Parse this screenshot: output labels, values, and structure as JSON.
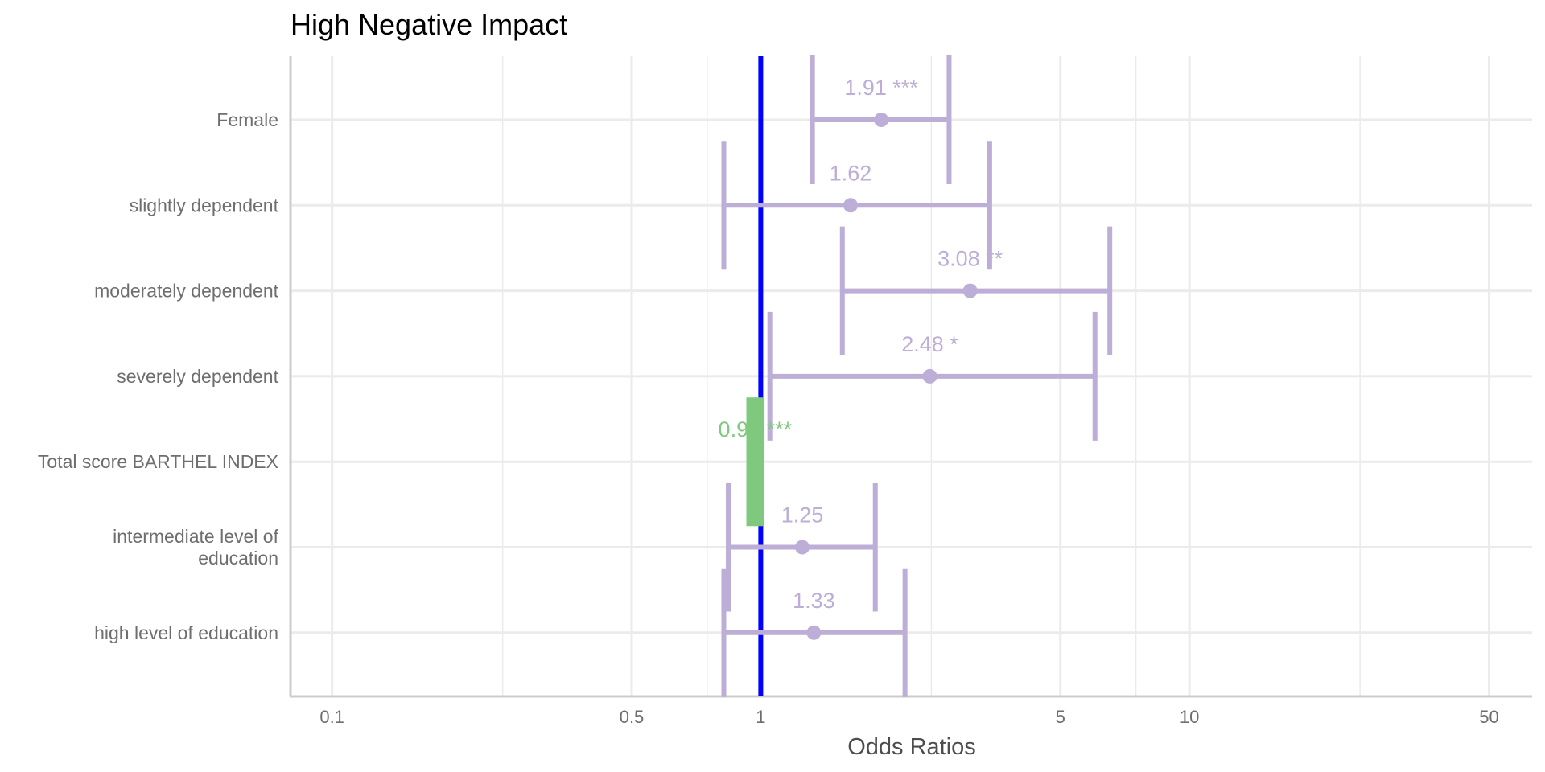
{
  "chart_data": {
    "type": "forest",
    "title": "High Negative Impact",
    "xlabel": "Odds Ratios",
    "x_scale": "log10",
    "xlim": [
      0.08,
      63
    ],
    "x_ticks": [
      0.1,
      0.5,
      1,
      5,
      10,
      50
    ],
    "x_tick_labels": [
      "0.1",
      "0.5",
      "1",
      "5",
      "10",
      "50"
    ],
    "x_minor_ticks": [
      0.25,
      0.75,
      2.5,
      7.5,
      25
    ],
    "reference_line": 1,
    "grid": true,
    "legend": "none",
    "colors": {
      "positive": "#bcaed6",
      "negative": "#7fc97f",
      "reference": "#0000ff",
      "grid": "#ebebeb",
      "axis": "#cccccc"
    },
    "rows": [
      {
        "label": [
          "Female"
        ],
        "estimate": 1.91,
        "ci_low": 1.32,
        "ci_high": 2.75,
        "text": "1.91 ***",
        "color": "positive"
      },
      {
        "label": [
          "slightly dependent"
        ],
        "estimate": 1.62,
        "ci_low": 0.82,
        "ci_high": 3.42,
        "text": "1.62",
        "color": "positive"
      },
      {
        "label": [
          "moderately dependent"
        ],
        "estimate": 3.08,
        "ci_low": 1.55,
        "ci_high": 6.52,
        "text": "3.08 **",
        "color": "positive"
      },
      {
        "label": [
          "severely dependent"
        ],
        "estimate": 2.48,
        "ci_low": 1.05,
        "ci_high": 6.02,
        "text": "2.48 *",
        "color": "positive"
      },
      {
        "label": [
          "Total score BARTHEL INDEX"
        ],
        "estimate": 0.97,
        "ci_low": 0.95,
        "ci_high": 0.99,
        "text": "0.97 ***",
        "color": "negative"
      },
      {
        "label": [
          "intermediate level of",
          "education"
        ],
        "estimate": 1.25,
        "ci_low": 0.84,
        "ci_high": 1.85,
        "text": "1.25",
        "color": "positive"
      },
      {
        "label": [
          "high level of education"
        ],
        "estimate": 1.33,
        "ci_low": 0.82,
        "ci_high": 2.17,
        "text": "1.33",
        "color": "positive"
      }
    ]
  }
}
